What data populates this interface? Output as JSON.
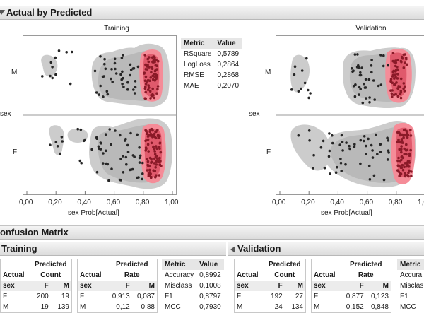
{
  "actual_by_predicted": {
    "title": "Actual by Predicted",
    "y_axis_label": "sex",
    "x_axis_label": "sex Prob[Actual]",
    "x_ticks": [
      "0,00",
      "0,20",
      "0,40",
      "0,60",
      "0,80",
      "1,00"
    ],
    "y_categories": [
      "M",
      "F"
    ],
    "training_title": "Training",
    "validation_title": "Validation"
  },
  "fit_metrics": {
    "headers": [
      "Metric",
      "Value"
    ],
    "rows": [
      [
        "RSquare",
        "0,5789"
      ],
      [
        "LogLoss",
        "0,2864"
      ],
      [
        "RMSE",
        "0,2868"
      ],
      [
        "MAE",
        "0,2070"
      ]
    ]
  },
  "confusion_matrix": {
    "title": "onfusion Matrix",
    "training": {
      "title": "Training",
      "count": {
        "header_top": "Predicted",
        "header_sub": "Count",
        "actual_label": "Actual",
        "row_var": "sex",
        "cols": [
          "F",
          "M"
        ],
        "rows": [
          {
            "label": "F",
            "values": [
              "200",
              "19"
            ]
          },
          {
            "label": "M",
            "values": [
              "19",
              "139"
            ]
          }
        ]
      },
      "rate": {
        "header_top": "Predicted",
        "header_sub": "Rate",
        "actual_label": "Actual",
        "row_var": "sex",
        "cols": [
          "F",
          "M"
        ],
        "rows": [
          {
            "label": "F",
            "values": [
              "0,913",
              "0,087"
            ]
          },
          {
            "label": "M",
            "values": [
              "0,12",
              "0,88"
            ]
          }
        ]
      },
      "metrics": {
        "headers": [
          "Metric",
          "Value"
        ],
        "rows": [
          [
            "Accuracy",
            "0,8992"
          ],
          [
            "Misclass",
            "0,1008"
          ],
          [
            "F1",
            "0,8797"
          ],
          [
            "MCC",
            "0,7930"
          ]
        ]
      }
    },
    "validation": {
      "title": "Validation",
      "count": {
        "header_top": "Predicted",
        "header_sub": "Count",
        "actual_label": "Actual",
        "row_var": "sex",
        "cols": [
          "F",
          "M"
        ],
        "rows": [
          {
            "label": "F",
            "values": [
              "192",
              "27"
            ]
          },
          {
            "label": "M",
            "values": [
              "24",
              "134"
            ]
          }
        ]
      },
      "rate": {
        "header_top": "Predicted",
        "header_sub": "Rate",
        "actual_label": "Actual",
        "row_var": "sex",
        "cols": [
          "F",
          "M"
        ],
        "rows": [
          {
            "label": "F",
            "values": [
              "0,877",
              "0,123"
            ]
          },
          {
            "label": "M",
            "values": [
              "0,152",
              "0,848"
            ]
          }
        ]
      },
      "metrics": {
        "headers": [
          "Metric"
        ],
        "rows": [
          [
            "Accura"
          ],
          [
            "Misclas"
          ],
          [
            "F1"
          ],
          [
            "MCC"
          ]
        ]
      }
    }
  },
  "colors": {
    "density_outer": "#cccccc",
    "density_inner": "#b9b9b9",
    "highlight_outer": "#f58c98",
    "highlight_inner": "#e05a6c",
    "point": "#262626",
    "highlight_point": "#8a1a28"
  }
}
